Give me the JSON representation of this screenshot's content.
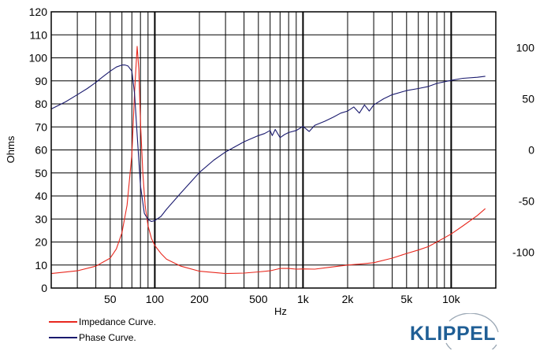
{
  "chart_data": {
    "type": "line",
    "xscale": "log",
    "xlim": [
      20,
      20000
    ],
    "ylim": [
      0,
      120
    ],
    "y2lim": [
      -135,
      135
    ],
    "xlabel": "Hz",
    "ylabel": "Ohms",
    "grid": true,
    "x_ticks": [
      50,
      100,
      200,
      500,
      1000,
      2000,
      5000,
      10000
    ],
    "x_tick_labels": [
      "50",
      "100",
      "200",
      "500",
      "1k",
      "2k",
      "5k",
      "10k"
    ],
    "y_ticks": [
      0,
      10,
      20,
      30,
      40,
      50,
      60,
      70,
      80,
      90,
      100,
      110,
      120
    ],
    "y2_ticks": [
      100,
      50,
      0,
      -50,
      -100
    ],
    "series": [
      {
        "name": "Impedance Curve.",
        "axis": "left",
        "color": "#e8281e",
        "x": [
          20,
          30,
          40,
          50,
          55,
          60,
          65,
          70,
          73,
          76,
          78,
          80,
          83,
          86,
          90,
          95,
          100,
          110,
          120,
          150,
          200,
          300,
          400,
          500,
          600,
          700,
          800,
          900,
          1000,
          1200,
          1500,
          2000,
          2500,
          3000,
          4000,
          5000,
          6000,
          7000,
          8000,
          10000,
          12000,
          15000,
          17000
        ],
        "y": [
          6.3,
          7.5,
          9.5,
          13,
          17,
          24,
          36,
          58,
          85,
          105,
          95,
          72,
          50,
          36,
          27,
          21.5,
          18.5,
          15,
          12.5,
          9.5,
          7.3,
          6.3,
          6.5,
          7,
          7.5,
          8.5,
          8.5,
          8.2,
          8.3,
          8.2,
          9,
          10,
          10.5,
          11,
          13,
          15,
          16.5,
          18,
          20,
          23.5,
          27,
          31.5,
          34.5
        ]
      },
      {
        "name": "Phase Curve.",
        "axis": "right",
        "color": "#1a1a6e",
        "x": [
          20,
          25,
          30,
          35,
          40,
          45,
          50,
          55,
          60,
          63,
          66,
          70,
          73,
          76,
          80,
          85,
          90,
          95,
          100,
          110,
          120,
          150,
          200,
          250,
          300,
          400,
          500,
          550,
          600,
          620,
          650,
          700,
          750,
          800,
          900,
          1000,
          1100,
          1200,
          1400,
          1600,
          1800,
          2000,
          2200,
          2400,
          2600,
          2800,
          3000,
          3500,
          4000,
          5000,
          6000,
          7000,
          8000,
          10000,
          12000,
          15000,
          17000
        ],
        "y": [
          40,
          47,
          54,
          60,
          66,
          72,
          77,
          81,
          83,
          83,
          82,
          77,
          55,
          15,
          -35,
          -62,
          -68,
          -70,
          -69,
          -65,
          -58,
          -42,
          -22,
          -10,
          -2,
          8,
          14,
          16,
          19,
          14,
          20,
          12,
          15,
          17,
          19,
          23,
          18,
          24,
          28,
          32,
          36,
          38,
          42,
          36,
          44,
          38,
          44,
          50,
          54,
          58,
          60,
          62,
          65,
          68,
          70,
          71,
          72
        ]
      }
    ]
  },
  "legend": {
    "impedance_label": "Impedance Curve.",
    "phase_label": "Phase Curve."
  },
  "branding": {
    "logo_text": "KLIPPEL"
  },
  "colors": {
    "impedance": "#e8281e",
    "phase": "#1a1a6e",
    "logo": "#1f5e95"
  }
}
